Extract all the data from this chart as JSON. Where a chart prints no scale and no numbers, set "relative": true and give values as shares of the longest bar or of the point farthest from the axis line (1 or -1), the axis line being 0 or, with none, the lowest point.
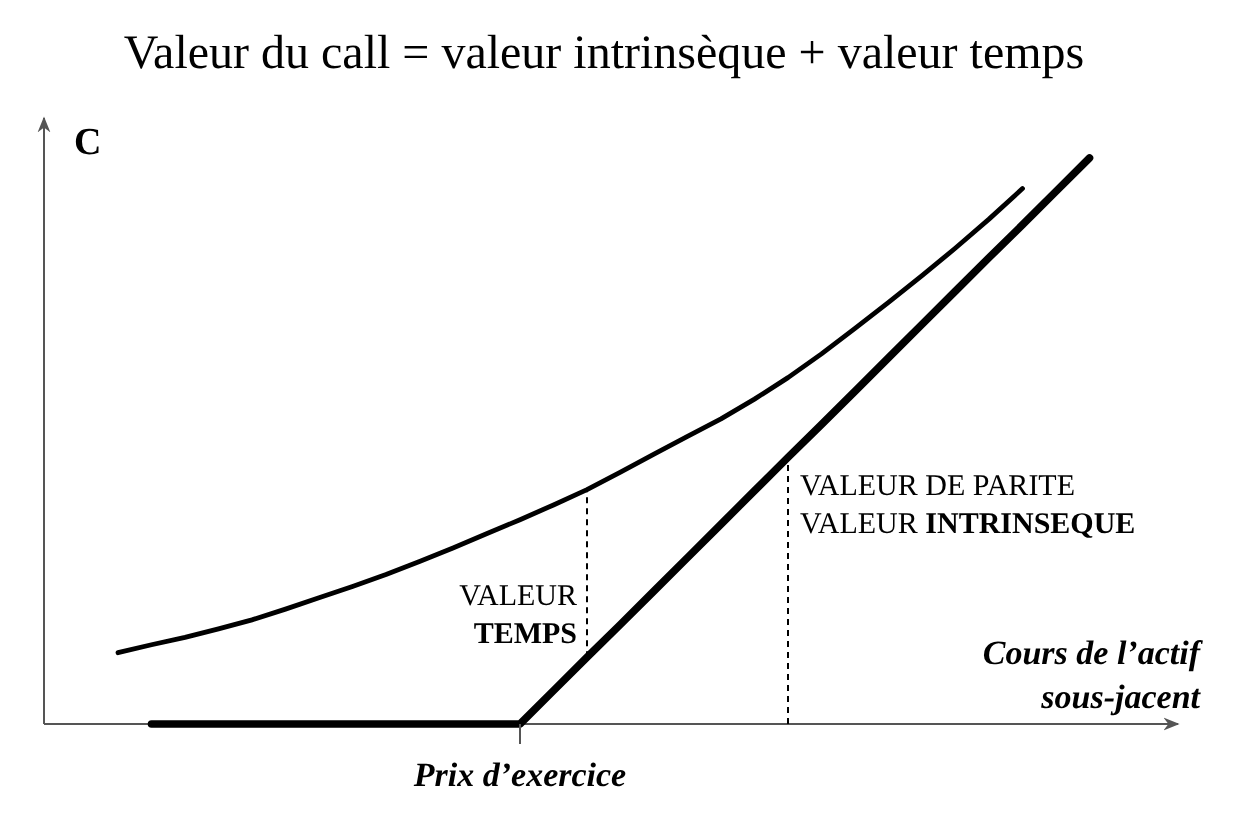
{
  "chart_data": {
    "type": "line",
    "title": "Valeur du call = valeur intrinsèque + valeur temps",
    "ylabel": "C",
    "xlabel": "Cours de l’actif\nsous-jacent",
    "relative": true,
    "categories": [
      null,
      null,
      null,
      null,
      null,
      null,
      null,
      null,
      null,
      null,
      null,
      null,
      null,
      null,
      null,
      null,
      null,
      null,
      null,
      null,
      null,
      null,
      null,
      null,
      null,
      null,
      null,
      null,
      null,
      null
    ],
    "series": [
      {
        "color": "#000000",
        "values": [
          0.126,
          0.14,
          0.153,
          0.168,
          0.184,
          0.203,
          0.223,
          0.243,
          0.264,
          0.287,
          0.311,
          0.336,
          0.361,
          0.387,
          0.414,
          0.445,
          0.477,
          0.508,
          0.539,
          0.574,
          0.612,
          0.654,
          0.699,
          0.745,
          0.792,
          0.841,
          0.892,
          0.946,
          null,
          null
        ]
      },
      {
        "color": "#000000",
        "values": [
          null,
          0,
          0,
          0,
          0,
          0,
          0,
          0,
          0,
          0,
          0,
          0,
          0,
          0.059,
          0.118,
          0.176,
          0.235,
          0.294,
          0.353,
          0.412,
          0.471,
          0.529,
          0.588,
          0.647,
          0.706,
          0.765,
          0.824,
          0.882,
          0.941,
          1
        ]
      }
    ],
    "annotations": [
      "VALEUR\nTEMPS",
      "VALEUR DE PARITE\nVALEUR INTRINSEQUE",
      "Prix d’exercice"
    ]
  }
}
